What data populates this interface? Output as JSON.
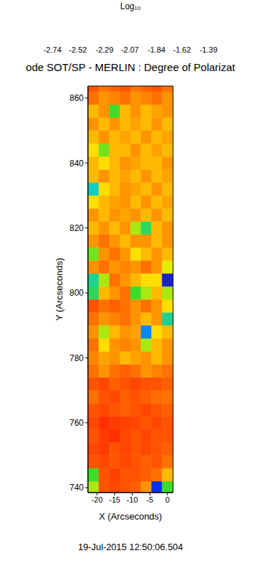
{
  "chart_data": {
    "type": "heatmap",
    "title": "ode SOT/SP - MERLIN : Degree of Polarizat",
    "annotations": [
      "19-Jul-2015 12:50:06.504"
    ],
    "x_label": "X (Arcseconds)",
    "y_label": "Y (Arcseconds)",
    "xlim": [
      -22.6,
      1.6
    ],
    "xticks": [
      -20,
      -15,
      -10,
      -5,
      0
    ],
    "ylim": [
      738.5,
      863.7
    ],
    "yticks": [
      740,
      760,
      780,
      800,
      820,
      840,
      860
    ],
    "grid": false,
    "x_edges": [
      -22.6,
      -19.5,
      -16.5,
      -13.5,
      -10.5,
      -7.5,
      -4.5,
      -1.5,
      1.6
    ],
    "y_edges": [
      738.5,
      742,
      746,
      750,
      754,
      758,
      762,
      766,
      770,
      774,
      778,
      782,
      786,
      790,
      794,
      798,
      802,
      806,
      810,
      814,
      818,
      822,
      826,
      830,
      834,
      838,
      842,
      846,
      850,
      854,
      858,
      862,
      863.7
    ],
    "z": [
      [
        -2.3,
        -2.6,
        -2.62,
        -2.6,
        -2.58,
        -2.5,
        -1.75,
        -2.2
      ],
      [
        -2.2,
        -2.6,
        -2.63,
        -2.6,
        -2.6,
        -2.58,
        -2.55,
        -2.45
      ],
      [
        -2.6,
        -2.62,
        -2.6,
        -2.62,
        -2.6,
        -2.58,
        -2.6,
        -2.55
      ],
      [
        -2.62,
        -2.64,
        -2.6,
        -2.62,
        -2.6,
        -2.62,
        -2.6,
        -2.58
      ],
      [
        -2.6,
        -2.64,
        -2.66,
        -2.62,
        -2.6,
        -2.62,
        -2.6,
        -2.6
      ],
      [
        -2.62,
        -2.66,
        -2.64,
        -2.63,
        -2.62,
        -2.6,
        -2.62,
        -2.6
      ],
      [
        -2.6,
        -2.62,
        -2.6,
        -2.58,
        -2.6,
        -2.62,
        -2.6,
        -2.58
      ],
      [
        -2.55,
        -2.6,
        -2.62,
        -2.58,
        -2.6,
        -2.58,
        -2.56,
        -2.55
      ],
      [
        -2.6,
        -2.62,
        -2.58,
        -2.6,
        -2.62,
        -2.6,
        -2.6,
        -2.58
      ],
      [
        -2.55,
        -2.5,
        -2.55,
        -2.58,
        -2.55,
        -2.5,
        -2.52,
        -2.55
      ],
      [
        -2.52,
        -2.48,
        -2.5,
        -2.45,
        -2.48,
        -2.5,
        -2.45,
        -2.5
      ],
      [
        -2.55,
        -2.4,
        -2.5,
        -2.52,
        -2.5,
        -2.3,
        -2.45,
        -2.5
      ],
      [
        -2.5,
        -2.3,
        -2.45,
        -2.5,
        -2.48,
        -1.9,
        -2.4,
        -2.45
      ],
      [
        -2.55,
        -2.5,
        -2.52,
        -2.55,
        -2.5,
        -2.45,
        -2.5,
        -2.1
      ],
      [
        -2.6,
        -2.55,
        -2.58,
        -2.55,
        -2.5,
        -2.55,
        -2.5,
        -2.4
      ],
      [
        -2.15,
        -2.45,
        -2.5,
        -2.55,
        -2.2,
        -2.3,
        -2.45,
        -2.3
      ],
      [
        -2.1,
        -2.3,
        -2.55,
        -2.5,
        -2.45,
        -2.4,
        -2.4,
        -1.7
      ],
      [
        -2.5,
        -2.55,
        -2.5,
        -2.52,
        -2.5,
        -2.55,
        -2.5,
        -2.35
      ],
      [
        -2.25,
        -2.5,
        -2.55,
        -2.5,
        -2.4,
        -2.45,
        -2.5,
        -2.45
      ],
      [
        -2.5,
        -2.55,
        -2.5,
        -2.45,
        -2.5,
        -2.5,
        -2.45,
        -2.5
      ],
      [
        -2.45,
        -2.5,
        -2.45,
        -2.5,
        -2.3,
        -2.15,
        -2.45,
        -2.5
      ],
      [
        -2.5,
        -2.45,
        -2.5,
        -2.48,
        -2.5,
        -2.45,
        -2.5,
        -2.45
      ],
      [
        -2.4,
        -2.45,
        -2.48,
        -2.5,
        -2.45,
        -2.5,
        -2.45,
        -2.48
      ],
      [
        -2.05,
        -2.4,
        -2.45,
        -2.5,
        -2.48,
        -2.45,
        -2.5,
        -2.45
      ],
      [
        -2.45,
        -2.5,
        -2.45,
        -2.48,
        -2.45,
        -2.5,
        -2.45,
        -2.48
      ],
      [
        -2.45,
        -2.4,
        -2.45,
        -2.5,
        -2.48,
        -2.45,
        -2.45,
        -2.5
      ],
      [
        -2.4,
        -2.25,
        -2.45,
        -2.45,
        -2.5,
        -2.45,
        -2.48,
        -2.45
      ],
      [
        -2.45,
        -2.5,
        -2.45,
        -2.48,
        -2.45,
        -2.5,
        -2.45,
        -2.48
      ],
      [
        -2.5,
        -2.45,
        -2.5,
        -2.45,
        -2.48,
        -2.45,
        -2.5,
        -2.45
      ],
      [
        -2.45,
        -2.5,
        -2.2,
        -2.45,
        -2.5,
        -2.45,
        -2.48,
        -2.5
      ],
      [
        -2.55,
        -2.5,
        -2.52,
        -2.55,
        -2.5,
        -2.52,
        -2.55,
        -2.5
      ],
      [
        -2.6,
        -2.55,
        -2.58,
        -2.6,
        -2.55,
        -2.58,
        -2.6,
        -2.55
      ]
    ],
    "colorbar": {
      "label": "Log₁₀",
      "range": [
        -2.74,
        -1.39
      ],
      "ticks": [
        -2.74,
        -2.52,
        -2.29,
        -2.07,
        -1.84,
        -1.62,
        -1.39
      ]
    }
  }
}
